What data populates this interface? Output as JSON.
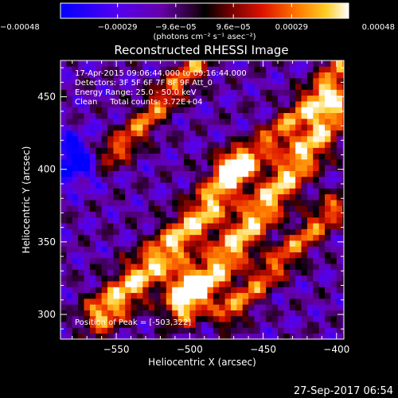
{
  "chart_data": {
    "type": "heatmap",
    "title": "Reconstructed RHESSI Image",
    "xlabel": "Heliocentric X (arcsec)",
    "ylabel": "Heliocentric Y (arcsec)",
    "xlim": [
      -588,
      -395
    ],
    "ylim": [
      283,
      475
    ],
    "x_ticks": [
      -550,
      -500,
      -450,
      -400
    ],
    "y_ticks": [
      300,
      350,
      400,
      450
    ],
    "x_tick_labels": [
      "−550",
      "−500",
      "−450",
      "−400"
    ],
    "y_tick_labels": [
      "300",
      "350",
      "400",
      "450"
    ],
    "colorbar": {
      "range": [
        -0.00048,
        0.00048
      ],
      "ticks": [
        -0.00048,
        -0.00029,
        -9.6e-05,
        9.6e-05,
        0.00029,
        0.00048
      ],
      "tick_labels": [
        "−0.00048",
        "−0.00029",
        "−9.6e−05",
        "9.6e−05",
        "0.00029",
        "0.00048"
      ],
      "units_label": "(photons cm⁻² s⁻¹ asec⁻²)",
      "colormap": "rainbow-to-hot",
      "colors": [
        "#0000ff",
        "#4400ff",
        "#7700bb",
        "#440044",
        "#000000",
        "#660000",
        "#cc1100",
        "#ff6600",
        "#ffbb00",
        "#ffffff"
      ]
    },
    "annotations": [
      "17-Apr-2015 09:06:44.000 to 09:16:44.000",
      "Detectors: 3F 5F 6F 7F 8F 9F Att_0",
      "Energy Range: 25.0 - 50.0 keV",
      "Clean     Total counts: 3.72E+04",
      "Position of Peak = [-503,322]"
    ],
    "peak": {
      "x": -503,
      "y": 322
    },
    "bright_ridges": [
      {
        "x": [
          -560,
          -545,
          -530,
          -515,
          -500,
          -490,
          -480,
          -470
        ],
        "y": [
          300,
          315,
          330,
          345,
          360,
          370,
          385,
          400
        ]
      },
      {
        "x": [
          -505,
          -490,
          -475,
          -460,
          -445,
          -430,
          -415,
          -400
        ],
        "y": [
          305,
          320,
          340,
          360,
          380,
          400,
          420,
          445
        ]
      },
      {
        "x": [
          -475,
          -460,
          -445,
          -430,
          -415,
          -400
        ],
        "y": [
          300,
          315,
          330,
          345,
          360,
          375
        ]
      },
      {
        "x": [
          -555,
          -545,
          -535,
          -525,
          -515,
          -505,
          -495
        ],
        "y": [
          410,
          418,
          428,
          440,
          452,
          462,
          472
        ]
      },
      {
        "x": [
          -470,
          -455,
          -440,
          -425,
          -410,
          -398
        ],
        "y": [
          400,
          412,
          425,
          440,
          455,
          470
        ]
      }
    ],
    "negative_region": {
      "x": -580,
      "y": 407
    }
  },
  "footer": {
    "date": "27-Sep-2017 06:54"
  }
}
